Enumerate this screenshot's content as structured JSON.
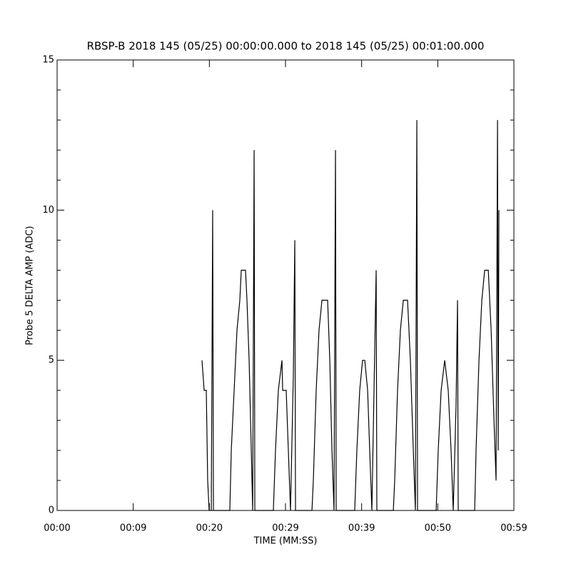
{
  "chart_data": {
    "type": "line",
    "title": "RBSP-B 2018 145 (05/25) 00:00:00.000 to 2018 145 (05/25) 00:01:00.000",
    "x_label": "TIME (MM:SS)",
    "y_label": "Probe 5 DELTA AMP (ADC)",
    "xlim": [
      0,
      59.4
    ],
    "xticks": [
      {
        "value": 0,
        "label": "00:00"
      },
      {
        "value": 9.9,
        "label": "00:09"
      },
      {
        "value": 19.8,
        "label": "00:20"
      },
      {
        "value": 29.7,
        "label": "00:29"
      },
      {
        "value": 39.6,
        "label": "00:39"
      },
      {
        "value": 49.5,
        "label": "00:50"
      },
      {
        "value": 59.4,
        "label": "00:59"
      }
    ],
    "ylim": [
      0,
      15
    ],
    "yticks": [
      0,
      5,
      10,
      15
    ],
    "yticks_minor": [
      1,
      2,
      3,
      4,
      6,
      7,
      8,
      9,
      11,
      12,
      13,
      14
    ],
    "color": "#000000",
    "x": [
      18.84,
      19.12,
      19.4,
      19.58,
      19.77,
      20.05,
      20.23,
      20.33,
      22.46,
      22.65,
      23.02,
      23.39,
      23.76,
      23.95,
      24.5,
      24.69,
      24.97,
      25.25,
      25.43,
      25.62,
      25.71,
      28.12,
      28.4,
      28.77,
      29.24,
      29.33,
      29.79,
      30.07,
      30.35,
      30.72,
      30.91,
      31.0,
      33.14,
      33.32,
      33.69,
      34.06,
      34.44,
      35.18,
      35.46,
      35.74,
      36.01,
      36.2,
      36.29,
      38.7,
      38.98,
      39.35,
      39.72,
      40.01,
      40.38,
      40.65,
      40.93,
      41.21,
      41.49,
      41.58,
      43.72,
      43.9,
      44.27,
      44.64,
      45.02,
      45.57,
      45.94,
      46.32,
      46.59,
      46.78,
      46.87,
      49.29,
      49.56,
      49.94,
      50.4,
      50.86,
      51.23,
      51.51,
      51.88,
      52.07,
      52.16,
      54.3,
      54.48,
      54.86,
      55.23,
      55.6,
      56.07,
      56.44,
      56.81,
      57.08,
      57.27,
      57.36,
      57.45
    ],
    "values": [
      5,
      4,
      4,
      1,
      0,
      0,
      10,
      0,
      0,
      2,
      4,
      6,
      7,
      8,
      8,
      7,
      5,
      2,
      0,
      12,
      0,
      0,
      2,
      4,
      5,
      4,
      4,
      2,
      0,
      4.5,
      9,
      0,
      0,
      1,
      4,
      6,
      7,
      7,
      5,
      2,
      0,
      12,
      0,
      0,
      2,
      4,
      5,
      5,
      4,
      2,
      0,
      4,
      8,
      0,
      0,
      1,
      4,
      6,
      7,
      7,
      5,
      2,
      0,
      13,
      0,
      0,
      2,
      4,
      5,
      4,
      2,
      0,
      3.5,
      7,
      0,
      0,
      2,
      5,
      7,
      8,
      8,
      6,
      3,
      1,
      13,
      2,
      10
    ]
  }
}
